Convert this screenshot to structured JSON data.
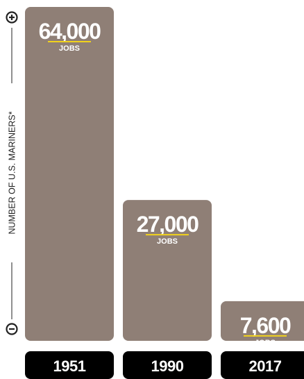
{
  "chart_data": {
    "type": "bar",
    "categories": [
      "1951",
      "1990",
      "2017"
    ],
    "values": [
      64000,
      27000,
      7600
    ],
    "value_labels": [
      "64,000",
      "27,000",
      "7,600"
    ],
    "unit_label": "JOBS",
    "ylabel": "NUMBER OF U.S. MARINERS*",
    "ylim": [
      0,
      64000
    ],
    "grid": false,
    "legend": "none"
  },
  "axis": {
    "top_symbol": "+",
    "bottom_symbol": "−"
  },
  "colors": {
    "bar": "#8f7f76",
    "category_box": "#000000",
    "value_underline": "#f1d21c",
    "text_on_bar": "#ffffff",
    "axis": "#222222"
  }
}
